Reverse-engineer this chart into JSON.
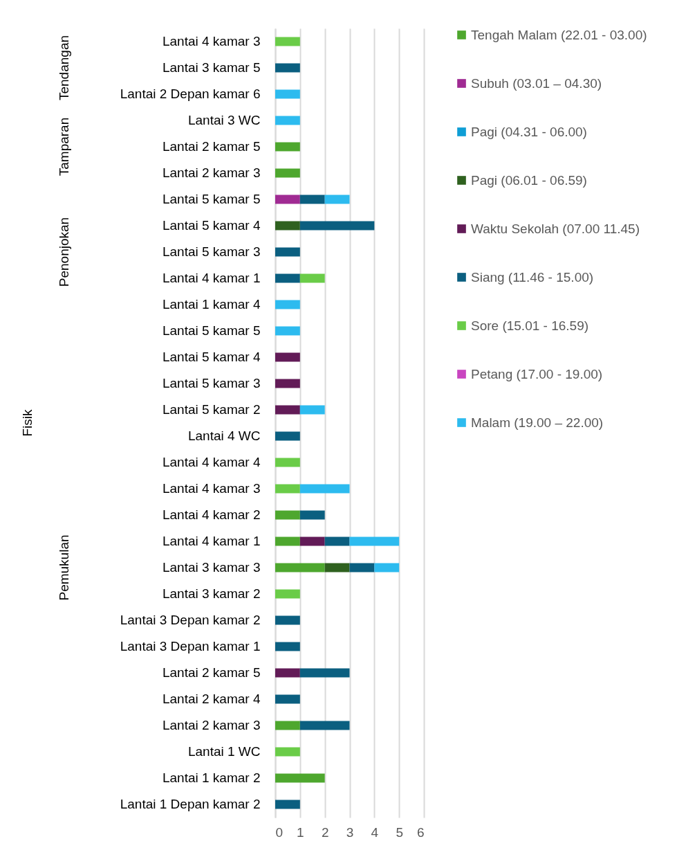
{
  "chart_data": {
    "type": "bar",
    "orientation": "horizontal",
    "stacked": true,
    "categories": [
      "Lantai 4 kamar 3",
      "Lantai 3 kamar 5",
      "Lantai 2 Depan kamar 6",
      "Lantai 3 WC",
      "Lantai 2 kamar 5",
      "Lantai 2 kamar 3",
      "Lantai 5 kamar 5",
      "Lantai 5 kamar 4",
      "Lantai 5 kamar 3",
      "Lantai 4 kamar 1",
      "Lantai 1 kamar 4",
      "Lantai 5 kamar 5",
      "Lantai 5 kamar 4",
      "Lantai 5 kamar 3",
      "Lantai 5 kamar 2",
      "Lantai 4 WC",
      "Lantai 4 kamar 4",
      "Lantai 4 kamar 3",
      "Lantai 4 kamar 2",
      "Lantai 4 kamar 1",
      "Lantai 3 kamar 3",
      "Lantai 3 kamar 2",
      "Lantai 3 Depan kamar 2",
      "Lantai 3 Depan kamar 1",
      "Lantai 2 kamar 5",
      "Lantai 2 kamar 4",
      "Lantai 2 kamar 3",
      "Lantai 1 WC",
      "Lantai 1 kamar 2",
      "Lantai 1 Depan kamar 2"
    ],
    "series": [
      {
        "name": "Tengah Malam (22.01 - 03.00)",
        "color": "#4ea72e",
        "values": [
          null,
          null,
          null,
          null,
          1,
          1,
          null,
          null,
          null,
          null,
          null,
          null,
          null,
          null,
          null,
          null,
          null,
          null,
          1,
          1,
          2,
          null,
          null,
          null,
          null,
          null,
          1,
          null,
          2,
          null
        ]
      },
      {
        "name": "Subuh (03.01 – 04.30)",
        "color": "#a02b93",
        "values": [
          null,
          null,
          null,
          null,
          null,
          null,
          1,
          null,
          null,
          null,
          null,
          null,
          null,
          null,
          null,
          null,
          null,
          null,
          null,
          null,
          null,
          null,
          null,
          null,
          null,
          null,
          null,
          null,
          null,
          null
        ]
      },
      {
        "name": "Pagi (04.31 - 06.00)",
        "color": "#0f9ed5",
        "values": [
          null,
          null,
          null,
          null,
          null,
          null,
          null,
          null,
          null,
          null,
          null,
          null,
          null,
          null,
          null,
          null,
          null,
          null,
          null,
          null,
          null,
          null,
          null,
          null,
          null,
          null,
          null,
          null,
          null,
          null
        ]
      },
      {
        "name": "Pagi (06.01 - 06.59)",
        "color": "#2f611f",
        "values": [
          null,
          null,
          null,
          null,
          null,
          null,
          null,
          1,
          null,
          null,
          null,
          null,
          null,
          null,
          null,
          null,
          null,
          null,
          null,
          null,
          1,
          null,
          null,
          null,
          null,
          null,
          null,
          null,
          null,
          null
        ]
      },
      {
        "name": " Waktu Sekolah (07.00 11.45)",
        "color": "#621b57",
        "values": [
          null,
          null,
          null,
          null,
          null,
          null,
          null,
          null,
          null,
          null,
          null,
          null,
          1,
          1,
          1,
          null,
          null,
          null,
          null,
          1,
          null,
          null,
          null,
          null,
          1,
          null,
          null,
          null,
          null,
          null
        ]
      },
      {
        "name": "Siang (11.46 - 15.00)",
        "color": "#0b5f80",
        "values": [
          null,
          1,
          null,
          null,
          null,
          null,
          1,
          3,
          1,
          1,
          null,
          null,
          null,
          null,
          null,
          1,
          null,
          null,
          1,
          1,
          1,
          null,
          1,
          1,
          2,
          1,
          2,
          null,
          null,
          1
        ]
      },
      {
        "name": "Sore (15.01 - 16.59)",
        "color": "#6acc48",
        "values": [
          1,
          null,
          null,
          null,
          null,
          null,
          null,
          null,
          null,
          1,
          null,
          null,
          null,
          null,
          null,
          null,
          1,
          1,
          null,
          null,
          null,
          1,
          null,
          null,
          null,
          null,
          null,
          1,
          null,
          null
        ]
      },
      {
        "name": "Petang (17.00 - 19.00)",
        "color": "#c945c0",
        "values": [
          null,
          null,
          null,
          null,
          null,
          null,
          null,
          null,
          null,
          null,
          null,
          null,
          null,
          null,
          null,
          null,
          null,
          null,
          null,
          null,
          null,
          null,
          null,
          null,
          null,
          null,
          null,
          null,
          null,
          null
        ]
      },
      {
        "name": "Malam (19.00 – 22.00)",
        "color": "#2dbbef",
        "values": [
          null,
          null,
          1,
          1,
          null,
          null,
          1,
          null,
          null,
          null,
          1,
          1,
          null,
          null,
          1,
          null,
          null,
          2,
          null,
          2,
          1,
          null,
          null,
          null,
          null,
          null,
          null,
          null,
          null,
          null
        ]
      }
    ],
    "xlim": [
      0,
      6
    ],
    "xticks": [
      0,
      1,
      2,
      3,
      4,
      5,
      6
    ],
    "grid": "x",
    "legend": "right",
    "annotations": [
      "Tendangan",
      "Tamparan",
      "Penonjokan",
      "Pemukulan",
      "Fisik"
    ]
  }
}
